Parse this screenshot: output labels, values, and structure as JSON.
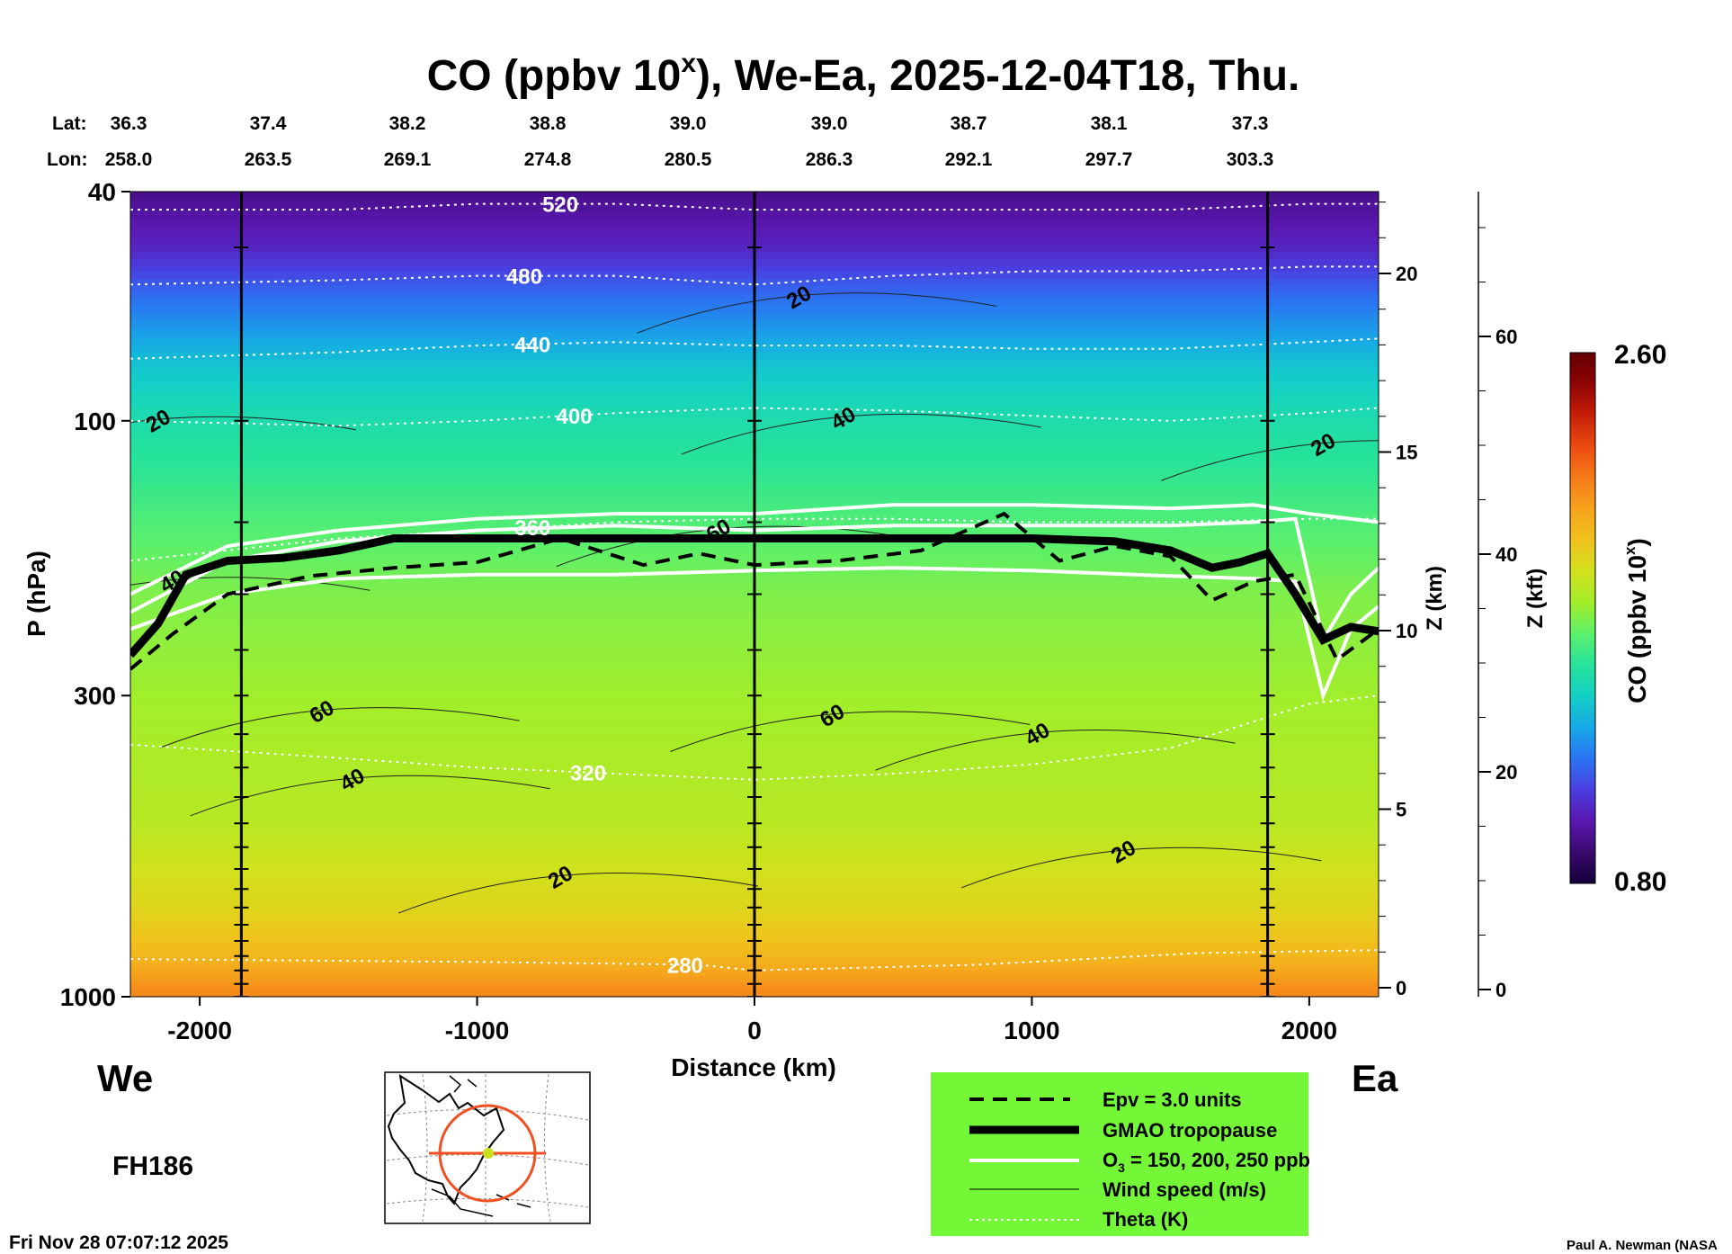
{
  "title": {
    "prefix": "CO (ppbv 10",
    "superscript": "x",
    "suffix": "), We-Ea, 2025-12-04T18, Thu."
  },
  "header": {
    "lat_label": "Lat:",
    "lon_label": "Lon:",
    "lats": [
      "36.3",
      "37.4",
      "38.2",
      "38.8",
      "39.0",
      "39.0",
      "38.7",
      "38.1",
      "37.3"
    ],
    "lons": [
      "258.0",
      "263.5",
      "269.1",
      "274.8",
      "280.5",
      "286.3",
      "292.1",
      "297.7",
      "303.3"
    ]
  },
  "side_labels": {
    "west": "We",
    "east": "Ea",
    "forecast_hour": "FH186"
  },
  "timestamp": "Fri Nov 28 07:07:12 2025",
  "credit": "Paul A. Newman (NASA",
  "colorbar": {
    "label_prefix": "CO (ppbv 10",
    "label_sup": "x",
    "label_suffix": ")",
    "max_label": "2.60",
    "min_label": "0.80",
    "max": 2.6,
    "min": 0.8,
    "colors": [
      "#14003c",
      "#3a0a6e",
      "#5a17b0",
      "#4a3ee0",
      "#2a74f2",
      "#17a8e6",
      "#13d0c6",
      "#26e39a",
      "#5cf06a",
      "#a2ee2a",
      "#d2e11c",
      "#f0c21c",
      "#f6a21c",
      "#f57a18",
      "#ec4a10",
      "#c81e08",
      "#8e0404",
      "#640000"
    ]
  },
  "legend": {
    "background": "#74f736",
    "items": [
      {
        "style": "dashed",
        "label": "Epv = 3.0 units"
      },
      {
        "style": "thick",
        "label": "GMAO tropopause"
      },
      {
        "style": "white",
        "label_prefix": "O",
        "label_sub": "3",
        "label_suffix": " = 150, 200, 250 ppb"
      },
      {
        "style": "thin",
        "label": "Wind speed (m/s)"
      },
      {
        "style": "dotted",
        "label": "Theta (K)"
      }
    ]
  },
  "chart_data": {
    "type": "heatmap",
    "title": "CO (ppbv 10^x), We-Ea, 2025-12-04T18, Thu.",
    "xlabel": "Distance (km)",
    "ylabel": "P (hPa)",
    "y2label": "Z (km)",
    "y3label": "Z (kft)",
    "xlim": [
      -2250,
      2250
    ],
    "ylim": [
      1000,
      40
    ],
    "yscale": "log",
    "x_ticks": [
      -2000,
      -1000,
      0,
      1000,
      2000
    ],
    "y_ticks": [
      1000,
      300,
      100,
      40
    ],
    "z_km_ticks": [
      0,
      5,
      10,
      15,
      20
    ],
    "z_kft_ticks": [
      0,
      20,
      40,
      60
    ],
    "vertical_lines_km": [
      -1850,
      0,
      1850
    ],
    "co_profile": {
      "pressure_hPa": [
        1000,
        850,
        700,
        500,
        300,
        200,
        150,
        120,
        100,
        80,
        60,
        50,
        40
      ],
      "co_log10": [
        2.15,
        2.0,
        1.9,
        1.8,
        1.75,
        1.7,
        1.62,
        1.55,
        1.5,
        1.4,
        1.2,
        1.05,
        0.95
      ]
    },
    "tropopause": {
      "x_km": [
        -2250,
        -2150,
        -2050,
        -1900,
        -1700,
        -1500,
        -1300,
        -1000,
        -500,
        0,
        500,
        1000,
        1300,
        1500,
        1650,
        1750,
        1850,
        1950,
        2050,
        2150,
        2250
      ],
      "p_hPa": [
        255,
        225,
        185,
        175,
        173,
        168,
        160,
        160,
        160,
        160,
        160,
        160,
        162,
        168,
        180,
        176,
        170,
        200,
        240,
        228,
        232
      ]
    },
    "epv_3": {
      "x_km": [
        -2250,
        -2100,
        -1900,
        -1600,
        -1300,
        -1000,
        -700,
        -400,
        -200,
        0,
        300,
        600,
        900,
        1100,
        1300,
        1500,
        1650,
        1800,
        1950,
        2100,
        2250
      ],
      "p_hPa": [
        270,
        235,
        200,
        186,
        180,
        176,
        160,
        178,
        170,
        178,
        175,
        168,
        145,
        175,
        165,
        172,
        205,
        190,
        185,
        260,
        230
      ]
    },
    "o3_contours": [
      {
        "level_ppb": 150,
        "x_km": [
          -2250,
          -1900,
          -1500,
          -1000,
          -500,
          0,
          500,
          1000,
          1500,
          1800,
          1950,
          2050,
          2150,
          2250
        ],
        "p_hPa": [
          230,
          200,
          188,
          185,
          185,
          182,
          180,
          182,
          186,
          188,
          190,
          300,
          230,
          210
        ]
      },
      {
        "level_ppb": 200,
        "x_km": [
          -2250,
          -1900,
          -1500,
          -1000,
          -500,
          0,
          500,
          1000,
          1500,
          1800,
          1950,
          2050,
          2150,
          2250
        ],
        "p_hPa": [
          215,
          175,
          162,
          155,
          152,
          155,
          152,
          152,
          152,
          150,
          148,
          240,
          200,
          180
        ]
      },
      {
        "level_ppb": 250,
        "x_km": [
          -2250,
          -1900,
          -1500,
          -1000,
          -500,
          0,
          500,
          1000,
          1500,
          1800,
          2000,
          2250
        ],
        "p_hPa": [
          200,
          165,
          155,
          148,
          145,
          145,
          140,
          140,
          142,
          140,
          145,
          150
        ]
      }
    ],
    "theta_contours": [
      {
        "level_K": 280,
        "x_km": [
          -2250,
          -1000,
          -200,
          0,
          800,
          1600,
          2250
        ],
        "p_hPa": [
          860,
          870,
          880,
          900,
          880,
          840,
          830
        ],
        "label_x_km": -250
      },
      {
        "level_K": 320,
        "x_km": [
          -2250,
          -1500,
          -1000,
          -500,
          0,
          500,
          1000,
          1500,
          2000,
          2250
        ],
        "p_hPa": [
          365,
          385,
          400,
          410,
          420,
          410,
          395,
          370,
          310,
          300
        ],
        "label_x_km": -600
      },
      {
        "level_K": 360,
        "x_km": [
          -2250,
          -1500,
          -1000,
          -500,
          0,
          500,
          1000,
          1500,
          2000,
          2250
        ],
        "p_hPa": [
          175,
          160,
          155,
          150,
          148,
          148,
          150,
          150,
          148,
          148
        ],
        "label_x_km": -800
      },
      {
        "level_K": 400,
        "x_km": [
          -2250,
          -1500,
          -1000,
          -500,
          0,
          500,
          1000,
          1500,
          2000,
          2250
        ],
        "p_hPa": [
          100,
          102,
          100,
          97,
          95,
          96,
          98,
          100,
          97,
          95
        ],
        "label_x_km": -650
      },
      {
        "level_K": 440,
        "x_km": [
          -2250,
          -1500,
          -1000,
          -500,
          0,
          500,
          1000,
          1500,
          2000,
          2250
        ],
        "p_hPa": [
          78,
          76,
          74,
          73,
          74,
          74,
          75,
          75,
          73,
          72
        ],
        "label_x_km": -800
      },
      {
        "level_K": 480,
        "x_km": [
          -2250,
          -1500,
          -1000,
          -500,
          0,
          500,
          1000,
          1500,
          2000,
          2250
        ],
        "p_hPa": [
          58,
          57,
          56,
          56,
          58,
          56,
          55,
          55,
          54,
          54
        ],
        "label_x_km": -830
      },
      {
        "level_K": 520,
        "x_km": [
          -2250,
          -1500,
          -1000,
          -500,
          0,
          500,
          1000,
          1500,
          2000,
          2250
        ],
        "p_hPa": [
          43,
          43,
          42,
          42,
          43,
          43,
          43,
          43,
          42,
          42
        ],
        "label_x_km": -700
      }
    ],
    "wind_labels": [
      {
        "label": "20",
        "x_km": -2150,
        "p_hPa": 100
      },
      {
        "label": "40",
        "x_km": -2100,
        "p_hPa": 190
      },
      {
        "label": "60",
        "x_km": -1560,
        "p_hPa": 320
      },
      {
        "label": "40",
        "x_km": -1450,
        "p_hPa": 420
      },
      {
        "label": "20",
        "x_km": -700,
        "p_hPa": 620
      },
      {
        "label": "60",
        "x_km": -130,
        "p_hPa": 155
      },
      {
        "label": "20",
        "x_km": 160,
        "p_hPa": 61
      },
      {
        "label": "40",
        "x_km": 320,
        "p_hPa": 99
      },
      {
        "label": "60",
        "x_km": 280,
        "p_hPa": 325
      },
      {
        "label": "40",
        "x_km": 1020,
        "p_hPa": 350
      },
      {
        "label": "20",
        "x_km": 1330,
        "p_hPa": 560
      },
      {
        "label": "20",
        "x_km": 2050,
        "p_hPa": 110
      }
    ]
  }
}
